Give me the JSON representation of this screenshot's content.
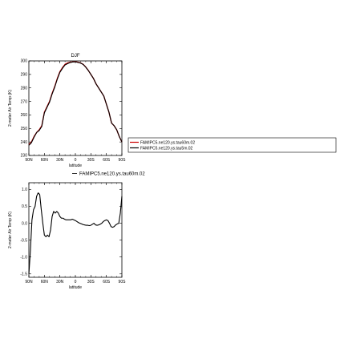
{
  "chart_data": [
    {
      "type": "line",
      "title": "DJF",
      "xlabel": "latitude",
      "ylabel": "2-meter Air Temp (K)",
      "xlim": [
        90,
        -90
      ],
      "ylim": [
        230,
        300
      ],
      "x_ticks": [
        90,
        60,
        30,
        0,
        -30,
        -60,
        -90
      ],
      "x_tick_labels": [
        "90N",
        "60N",
        "30N",
        "0",
        "30S",
        "60S",
        "90S"
      ],
      "y_ticks": [
        230,
        240,
        250,
        260,
        270,
        280,
        290,
        300
      ],
      "y_tick_labels": [
        "230",
        "240",
        "250",
        "260",
        "270",
        "280",
        "290",
        "300"
      ],
      "legend": {
        "placement": "right",
        "entries": [
          "FAMIPC5.ne120.ys.tau60m.02",
          "FAMIPC5.ne120.ys.tau5m.02"
        ]
      },
      "series": [
        {
          "name": "FAMIPC5.ne120.ys.tau60m.02",
          "color": "#cc0000",
          "x": [
            90,
            85,
            80,
            75,
            70,
            65,
            60,
            55,
            50,
            45,
            40,
            35,
            30,
            25,
            20,
            15,
            10,
            5,
            0,
            -5,
            -10,
            -15,
            -20,
            -25,
            -30,
            -35,
            -40,
            -45,
            -50,
            -55,
            -60,
            -65,
            -70,
            -75,
            -80,
            -85,
            -90
          ],
          "y": [
            238,
            240,
            244,
            247,
            249,
            252,
            262,
            266,
            270,
            276,
            281,
            287,
            292,
            295,
            297.5,
            298.5,
            299,
            299.3,
            299.5,
            299,
            298.5,
            297.5,
            295.5,
            293,
            290,
            287,
            283,
            280,
            277,
            274,
            268,
            262,
            254,
            252,
            249,
            244,
            240
          ]
        },
        {
          "name": "FAMIPC5.ne120.ys.tau5m.02",
          "color": "#000000",
          "x": [
            90,
            85,
            80,
            75,
            70,
            65,
            60,
            55,
            50,
            45,
            40,
            35,
            30,
            25,
            20,
            15,
            10,
            5,
            0,
            -5,
            -10,
            -15,
            -20,
            -25,
            -30,
            -35,
            -40,
            -45,
            -50,
            -55,
            -60,
            -65,
            -70,
            -75,
            -80,
            -85,
            -90
          ],
          "y": [
            237.5,
            239.5,
            243.5,
            247,
            248.5,
            251.5,
            261.5,
            265.5,
            269.5,
            275.5,
            280.5,
            286.5,
            291.5,
            294.5,
            297,
            298,
            298.8,
            299.2,
            299.4,
            298.9,
            298.4,
            297.4,
            295.4,
            292.9,
            290,
            287,
            283,
            280,
            277,
            274,
            268,
            262,
            254,
            252,
            249,
            244,
            240
          ]
        }
      ]
    },
    {
      "type": "line",
      "title": "",
      "xlabel": "latitude",
      "ylabel": "2-meter Air Temp (K)",
      "xlim": [
        90,
        -90
      ],
      "ylim": [
        -1.6,
        1.2
      ],
      "x_ticks": [
        90,
        60,
        30,
        0,
        -30,
        -60,
        -90
      ],
      "x_tick_labels": [
        "90N",
        "60N",
        "30N",
        "0",
        "30S",
        "60S",
        "90S"
      ],
      "y_ticks": [
        -1.5,
        -1.0,
        -0.5,
        0.0,
        0.5,
        1.0
      ],
      "y_tick_labels": [
        "-1.5",
        "-1.0",
        "-0.5",
        "0.0",
        "0.5",
        "1.0"
      ],
      "legend": {
        "placement": "top-right",
        "entries": [
          "FAMIPC5.ne120.ys.tau60m.02"
        ]
      },
      "series": [
        {
          "name": "FAMIPC5.ne120.ys.tau60m.02",
          "color": "#000000",
          "x": [
            90,
            87,
            84,
            81,
            78,
            75,
            72,
            69,
            66,
            63,
            60,
            57,
            54,
            51,
            48,
            45,
            42,
            39,
            36,
            33,
            30,
            27,
            24,
            21,
            18,
            15,
            12,
            9,
            6,
            3,
            0,
            -3,
            -6,
            -9,
            -12,
            -15,
            -18,
            -21,
            -24,
            -27,
            -30,
            -33,
            -36,
            -39,
            -42,
            -45,
            -48,
            -51,
            -54,
            -57,
            -60,
            -63,
            -66,
            -69,
            -72,
            -75,
            -78,
            -81,
            -84,
            -87,
            -90
          ],
          "y": [
            -1.5,
            -0.8,
            0.1,
            0.4,
            0.5,
            0.8,
            0.9,
            0.85,
            0.4,
            0.0,
            -0.35,
            -0.4,
            -0.35,
            -0.4,
            -0.2,
            0.2,
            0.35,
            0.3,
            0.35,
            0.3,
            0.2,
            0.15,
            0.15,
            0.12,
            0.1,
            0.1,
            0.1,
            0.1,
            0.12,
            0.1,
            0.08,
            0.05,
            0.02,
            0.0,
            -0.02,
            -0.04,
            -0.05,
            -0.06,
            -0.06,
            -0.07,
            -0.06,
            -0.03,
            0.0,
            -0.05,
            -0.06,
            -0.05,
            -0.03,
            0.0,
            0.05,
            0.08,
            0.1,
            0.08,
            0.0,
            -0.1,
            -0.12,
            -0.1,
            -0.05,
            -0.02,
            0.0,
            0.3,
            0.8
          ]
        }
      ]
    }
  ]
}
